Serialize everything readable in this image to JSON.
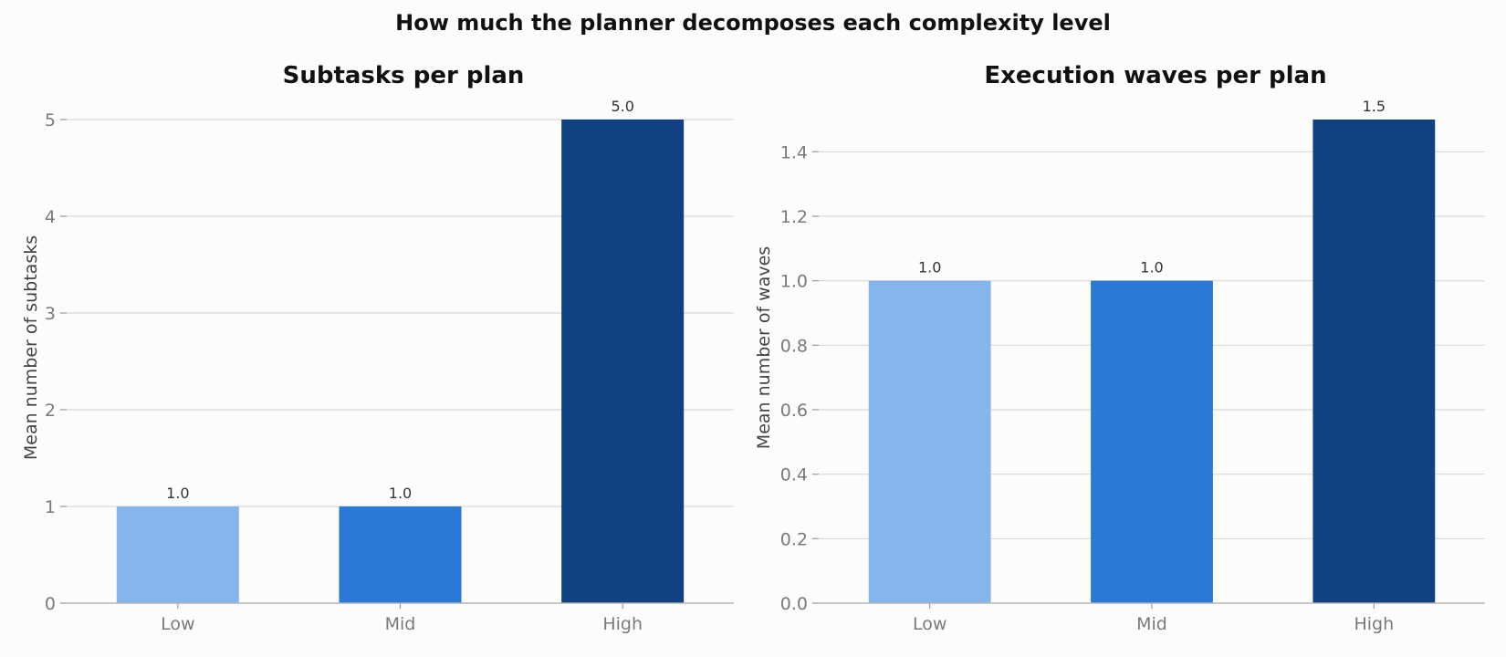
{
  "figure": {
    "title": "How much the planner decomposes each complexity level"
  },
  "chart_data": [
    {
      "type": "bar",
      "title": "Subtasks per plan",
      "xlabel": "",
      "ylabel": "Mean number of subtasks",
      "categories": [
        "Low",
        "Mid",
        "High"
      ],
      "values": [
        1.0,
        1.0,
        5.0
      ],
      "value_labels": [
        "1.0",
        "1.0",
        "5.0"
      ],
      "colors": [
        "#86b5ee",
        "#2a79d7",
        "#114182"
      ],
      "ylim": [
        0,
        5
      ],
      "yticks": [
        0,
        1,
        2,
        3,
        4,
        5
      ],
      "ytick_labels": [
        "0",
        "1",
        "2",
        "3",
        "4",
        "5"
      ],
      "grid": true
    },
    {
      "type": "bar",
      "title": "Execution waves per plan",
      "xlabel": "",
      "ylabel": "Mean number of waves",
      "categories": [
        "Low",
        "Mid",
        "High"
      ],
      "values": [
        1.0,
        1.0,
        1.5
      ],
      "value_labels": [
        "1.0",
        "1.0",
        "1.5"
      ],
      "colors": [
        "#86b5ee",
        "#2a79d7",
        "#114182"
      ],
      "ylim": [
        0,
        1.5
      ],
      "yticks": [
        0.0,
        0.2,
        0.4,
        0.6,
        0.8,
        1.0,
        1.2,
        1.4
      ],
      "ytick_labels": [
        "0.0",
        "0.2",
        "0.4",
        "0.6",
        "0.8",
        "1.0",
        "1.2",
        "1.4"
      ],
      "grid": true
    }
  ]
}
